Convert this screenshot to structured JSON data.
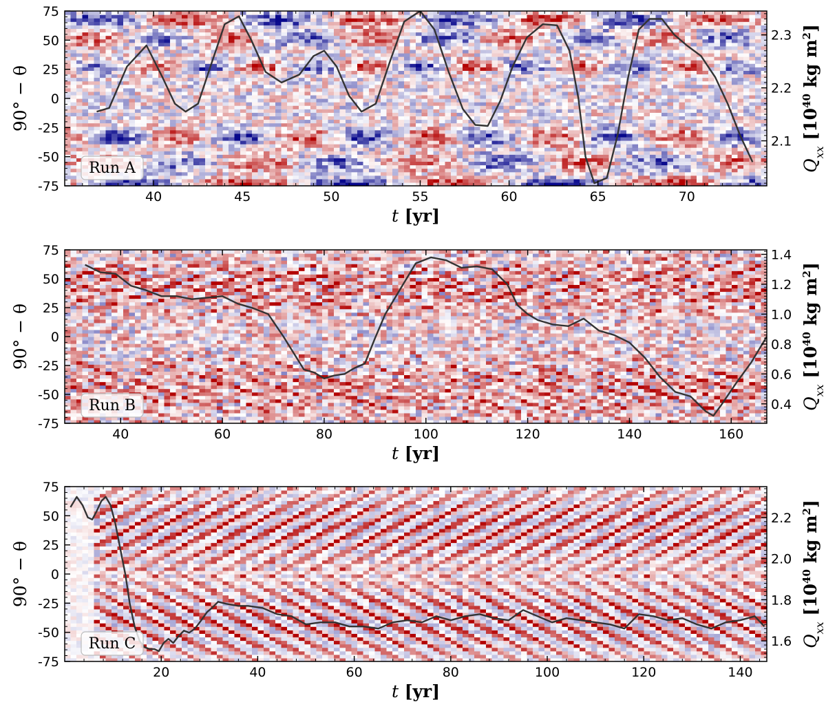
{
  "chart_data": [
    {
      "type": "heatmap",
      "panel_label": "Run A",
      "xlabel_var": "t",
      "xlabel_unit": "[yr]",
      "ylabel": "90° − θ",
      "y2label_var": "Q",
      "y2label_sub": "xx",
      "y2label_unit": "[10",
      "y2label_exp": "40",
      "y2label_unit2": " kg m",
      "y2label_exp2": "2",
      "y2label_close": "]",
      "xlim": [
        35,
        74.5
      ],
      "ylim": [
        -75,
        75
      ],
      "y2lim": [
        2.015,
        2.345
      ],
      "xticks": [
        40,
        45,
        50,
        55,
        60,
        65,
        70
      ],
      "yticks": [
        -75,
        -50,
        -25,
        0,
        25,
        50,
        75
      ],
      "y2ticks": [
        2.1,
        2.2,
        2.3
      ],
      "y2tick_labels": [
        "2.1",
        "2.2",
        "2.3"
      ],
      "colormap": {
        "negative": "#08088c",
        "zero": "#ffffff",
        "positive": "#b30000"
      },
      "field_bands": [
        {
          "t0": 35,
          "t1": 74.5,
          "lat": 68,
          "width": 6,
          "amp": 0.75,
          "slope": 0,
          "wave": 10,
          "phase": 0.3,
          "mod": 1
        },
        {
          "t0": 35,
          "t1": 74.5,
          "lat": 52,
          "width": 7,
          "amp": -0.6,
          "slope": 0,
          "wave": 8,
          "phase": 1.3,
          "mod": 1
        },
        {
          "t0": 35,
          "t1": 74.5,
          "lat": 27,
          "width": 5,
          "amp": -0.7,
          "slope": 0,
          "wave": 6,
          "phase": 0.5,
          "mod": 1
        },
        {
          "t0": 35,
          "t1": 74.5,
          "lat": -33,
          "width": 7,
          "amp": 0.7,
          "slope": 0,
          "wave": 7,
          "phase": 2.1,
          "mod": 1
        },
        {
          "t0": 35,
          "t1": 74.5,
          "lat": -55,
          "width": 7,
          "amp": 0.6,
          "slope": 0,
          "wave": 9,
          "phase": 0.9,
          "mod": 1
        },
        {
          "t0": 35,
          "t1": 74.5,
          "lat": -73,
          "width": 5,
          "amp": -0.9,
          "slope": 0,
          "wave": 12,
          "phase": 0,
          "mod": 1
        }
      ],
      "field_noise": 0.45,
      "series": [
        {
          "t": [
            36.8,
            37.5,
            38.5,
            39.6,
            40.5,
            41.2,
            41.8,
            42.5,
            43.2,
            44.0,
            44.8,
            45.5,
            46.3,
            47.2,
            48.2,
            49.0,
            49.6,
            50.3,
            51.0,
            51.7,
            52.5,
            53.3,
            54.1,
            55.0,
            55.8,
            56.6,
            57.4,
            58.1,
            58.8,
            59.5,
            60.2,
            61.0,
            61.9,
            62.7,
            63.4,
            63.9,
            64.3,
            64.8,
            65.5,
            66.1,
            66.7,
            67.3,
            67.9,
            68.6,
            69.3,
            70.0,
            70.8,
            71.6,
            72.3,
            73.0,
            73.7
          ],
          "q": [
            2.155,
            2.162,
            2.24,
            2.28,
            2.22,
            2.17,
            2.155,
            2.17,
            2.24,
            2.32,
            2.335,
            2.29,
            2.23,
            2.21,
            2.225,
            2.26,
            2.27,
            2.24,
            2.185,
            2.155,
            2.17,
            2.25,
            2.325,
            2.345,
            2.31,
            2.23,
            2.16,
            2.13,
            2.128,
            2.175,
            2.24,
            2.295,
            2.32,
            2.318,
            2.27,
            2.18,
            2.07,
            2.02,
            2.03,
            2.11,
            2.22,
            2.31,
            2.33,
            2.33,
            2.3,
            2.28,
            2.26,
            2.22,
            2.17,
            2.11,
            2.06
          ]
        }
      ]
    },
    {
      "type": "heatmap",
      "panel_label": "Run B",
      "xlabel_var": "t",
      "xlabel_unit": "[yr]",
      "ylabel": "90° − θ",
      "y2label_var": "Q",
      "y2label_sub": "xx",
      "y2label_unit": "[10",
      "y2label_exp": "40",
      "y2label_unit2": " kg m",
      "y2label_exp2": "2",
      "y2label_close": "]",
      "xlim": [
        29,
        167
      ],
      "ylim": [
        -75,
        75
      ],
      "y2lim": [
        0.27,
        1.43
      ],
      "xticks": [
        40,
        60,
        80,
        100,
        120,
        140,
        160
      ],
      "yticks": [
        -75,
        -50,
        -25,
        0,
        25,
        50,
        75
      ],
      "y2ticks": [
        0.4,
        0.6,
        0.8,
        1.0,
        1.2,
        1.4
      ],
      "y2tick_labels": [
        "0.4",
        "0.6",
        "0.8",
        "1.0",
        "1.2",
        "1.4"
      ],
      "colormap": {
        "negative": "#08088c",
        "zero": "#ffffff",
        "positive": "#b30000"
      },
      "field_bands": [
        {
          "t0": 29,
          "t1": 167,
          "lat": 45,
          "width": 30,
          "amp": 0.9,
          "slope": 1.4,
          "wave": 8,
          "phase": 0,
          "mod": 0.7
        },
        {
          "t0": 29,
          "t1": 167,
          "lat": -45,
          "width": 30,
          "amp": 0.9,
          "slope": -1.4,
          "wave": 8,
          "phase": 2.0,
          "mod": 0.7
        },
        {
          "t0": 29,
          "t1": 167,
          "lat": 0,
          "width": 6,
          "amp": 0.0,
          "slope": 0,
          "wave": 6,
          "phase": 0,
          "mod": 0
        }
      ],
      "field_noise": 0.5,
      "series": [
        {
          "t": [
            33,
            36,
            39,
            42,
            45,
            48,
            51,
            54,
            57,
            60,
            63,
            66,
            69,
            72,
            74,
            76,
            78,
            80,
            82,
            84,
            86,
            88,
            90,
            92,
            95,
            98,
            101,
            104,
            107,
            110,
            113,
            116,
            118,
            120,
            122,
            125,
            128,
            131,
            134,
            137,
            140,
            143,
            146,
            149,
            152,
            155,
            156.5,
            158,
            161,
            164,
            167
          ],
          "q": [
            1.33,
            1.28,
            1.27,
            1.19,
            1.16,
            1.12,
            1.12,
            1.1,
            1.11,
            1.12,
            1.07,
            1.04,
            1.0,
            0.85,
            0.74,
            0.63,
            0.61,
            0.57,
            0.59,
            0.6,
            0.64,
            0.67,
            0.84,
            1.0,
            1.17,
            1.34,
            1.38,
            1.36,
            1.31,
            1.32,
            1.3,
            1.2,
            1.06,
            1.0,
            0.96,
            0.93,
            0.92,
            0.97,
            0.89,
            0.86,
            0.81,
            0.71,
            0.58,
            0.48,
            0.45,
            0.35,
            0.32,
            0.39,
            0.54,
            0.68,
            0.85
          ]
        }
      ]
    },
    {
      "type": "heatmap",
      "panel_label": "Run C",
      "xlabel_var": "t",
      "xlabel_unit": "[yr]",
      "ylabel": "90° − θ",
      "y2label_var": "Q",
      "y2label_sub": "xx",
      "y2label_unit": "[10",
      "y2label_exp": "40",
      "y2label_unit2": " kg m",
      "y2label_exp2": "2",
      "y2label_close": "]",
      "xlim": [
        0,
        145.5
      ],
      "ylim": [
        -75,
        75
      ],
      "y2lim": [
        1.5,
        2.35
      ],
      "xticks": [
        20,
        40,
        60,
        80,
        100,
        120,
        140
      ],
      "yticks": [
        -75,
        -50,
        -25,
        0,
        25,
        50,
        75
      ],
      "y2ticks": [
        1.6,
        1.8,
        2.0,
        2.2
      ],
      "y2tick_labels": [
        "1.6",
        "1.8",
        "2.0",
        "2.2"
      ],
      "colormap": {
        "negative": "#08088c",
        "zero": "#ffffff",
        "positive": "#b30000"
      },
      "field_bands": [
        {
          "t0": 6,
          "t1": 145.5,
          "lat": 40,
          "width": 40,
          "amp": 1.1,
          "slope": 2.2,
          "wave": 6,
          "phase": 0,
          "mod": 0.4
        },
        {
          "t0": 6,
          "t1": 145.5,
          "lat": -40,
          "width": 40,
          "amp": 1.1,
          "slope": -2.2,
          "wave": 6,
          "phase": 1.5,
          "mod": 0.4
        }
      ],
      "field_noise": 0.15,
      "series": [
        {
          "t": [
            1.2,
            2.5,
            3.7,
            4.8,
            5.7,
            6.6,
            7.6,
            8.5,
            9.5,
            10.5,
            11.5,
            12.6,
            13.5,
            14.5,
            15.5,
            16.5,
            17.6,
            18.6,
            19.5,
            20.5,
            21.5,
            22.5,
            23.5,
            24.7,
            25.8,
            27.0,
            28.3,
            29.5,
            30.5,
            31.8,
            33.5,
            36,
            38,
            41,
            44,
            47,
            50,
            53,
            56,
            59,
            62,
            65,
            68,
            71,
            74,
            77,
            80,
            83,
            86,
            89,
            92,
            95,
            98,
            101,
            104,
            107,
            110,
            113,
            116,
            119,
            122,
            125,
            128,
            131,
            134,
            137,
            140,
            143,
            145
          ],
          "q": [
            2.25,
            2.3,
            2.26,
            2.2,
            2.19,
            2.23,
            2.28,
            2.3,
            2.26,
            2.17,
            2.05,
            1.92,
            1.78,
            1.67,
            1.6,
            1.57,
            1.56,
            1.56,
            1.55,
            1.59,
            1.61,
            1.59,
            1.62,
            1.65,
            1.64,
            1.66,
            1.7,
            1.74,
            1.76,
            1.79,
            1.78,
            1.77,
            1.77,
            1.76,
            1.73,
            1.72,
            1.68,
            1.69,
            1.69,
            1.67,
            1.67,
            1.66,
            1.69,
            1.7,
            1.69,
            1.72,
            1.7,
            1.72,
            1.73,
            1.71,
            1.7,
            1.75,
            1.72,
            1.69,
            1.71,
            1.7,
            1.69,
            1.68,
            1.66,
            1.73,
            1.72,
            1.7,
            1.71,
            1.68,
            1.66,
            1.69,
            1.7,
            1.72,
            1.67
          ]
        }
      ]
    }
  ]
}
